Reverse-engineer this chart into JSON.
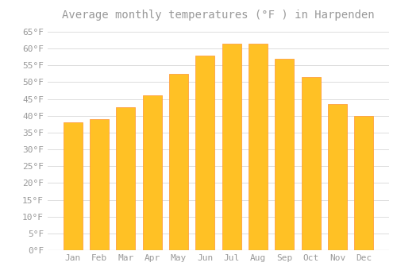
{
  "title": "Average monthly temperatures (°F ) in Harpenden",
  "months": [
    "Jan",
    "Feb",
    "Mar",
    "Apr",
    "May",
    "Jun",
    "Jul",
    "Aug",
    "Sep",
    "Oct",
    "Nov",
    "Dec"
  ],
  "values": [
    38,
    39,
    42.5,
    46,
    52.5,
    58,
    61.5,
    61.5,
    57,
    51.5,
    43.5,
    40
  ],
  "bar_color": "#FFC125",
  "bar_edge_color": "#FFA040",
  "background_color": "#FFFFFF",
  "grid_color": "#DDDDDD",
  "ylim": [
    0,
    67
  ],
  "yticks": [
    0,
    5,
    10,
    15,
    20,
    25,
    30,
    35,
    40,
    45,
    50,
    55,
    60,
    65
  ],
  "ytick_labels": [
    "0°F",
    "5°F",
    "10°F",
    "15°F",
    "20°F",
    "25°F",
    "30°F",
    "35°F",
    "40°F",
    "45°F",
    "50°F",
    "55°F",
    "60°F",
    "65°F"
  ],
  "title_fontsize": 10,
  "tick_fontsize": 8,
  "font_color": "#999999"
}
